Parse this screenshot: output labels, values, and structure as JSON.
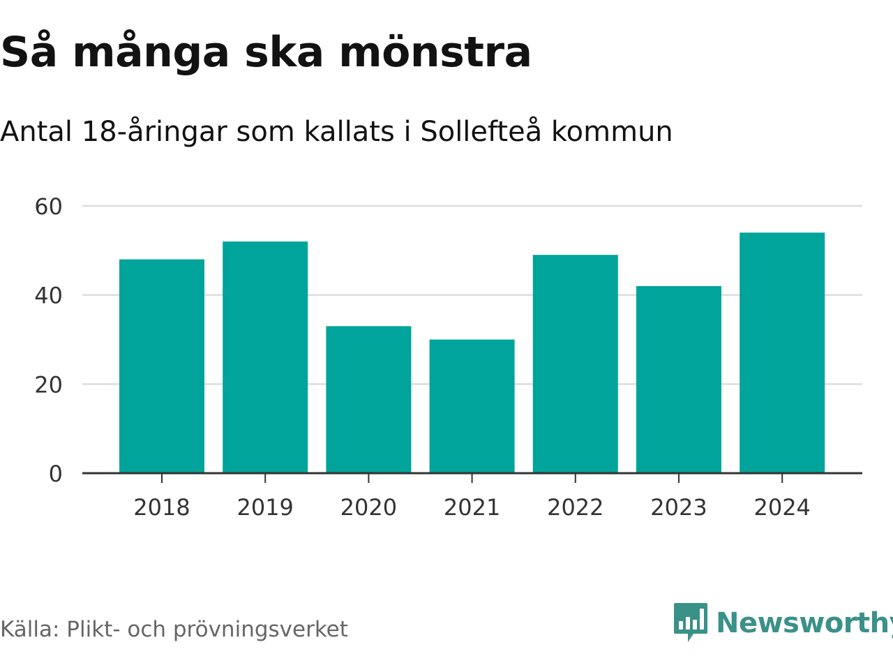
{
  "header": {
    "title": "Så många ska mönstra",
    "subtitle": "Antal 18-åringar som kallats i Sollefteå kommun"
  },
  "footer": {
    "source": "Källa: Plikt- och prövningsverket",
    "brand": "Newsworthy"
  },
  "colors": {
    "bar": "#00a49a",
    "grid": "#dddddd",
    "axis": "#333333",
    "brand": "#3a9188"
  },
  "chart_data": {
    "type": "bar",
    "title": "Så många ska mönstra",
    "subtitle": "Antal 18-åringar som kallats i Sollefteå kommun",
    "categories": [
      "2018",
      "2019",
      "2020",
      "2021",
      "2022",
      "2023",
      "2024"
    ],
    "values": [
      48,
      52,
      33,
      30,
      49,
      42,
      54
    ],
    "xlabel": "",
    "ylabel": "",
    "ylim": [
      0,
      60
    ],
    "yticks": [
      0,
      20,
      40,
      60
    ],
    "grid": true,
    "legend": "none"
  }
}
